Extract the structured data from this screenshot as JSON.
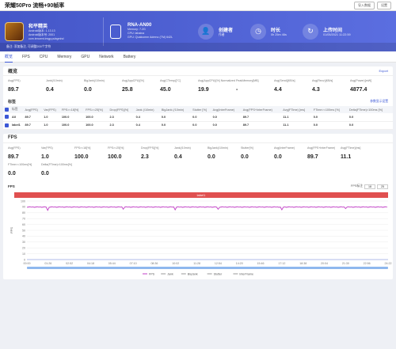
{
  "window": {
    "title": "荣耀50Pro 流畅+90帧率",
    "buttons": [
      "导入数据",
      "设置"
    ]
  },
  "game": {
    "name": "和平精英",
    "lines": [
      "Android版本: 1.13.13",
      "Android版本号: 2001",
      "com.tencent.tmgp.pubgmhd"
    ]
  },
  "device": {
    "name": "RNA-AN00",
    "lines": [
      "Memory: 7.2G",
      "CPU: lahaina",
      "GPU: Qualcomm Adreno (TM) 642L"
    ]
  },
  "stats": [
    {
      "label": "创建者",
      "value": "作者",
      "icon": "user-icon",
      "glyph": "👤"
    },
    {
      "label": "时长",
      "value": "0h 25m 46s",
      "icon": "clock-icon",
      "glyph": "◷"
    },
    {
      "label": "上传时间",
      "value": "01/05/2021 11:22:59",
      "icon": "history-icon",
      "glyph": "↻"
    }
  ],
  "banner_footer": "备注: 添加备注, 可调整200个字符",
  "tabs": [
    "概览",
    "FPS",
    "CPU",
    "Memory",
    "GPU",
    "Network",
    "Battery"
  ],
  "overview": {
    "title": "概览",
    "export": "Export",
    "metrics": [
      {
        "label": "Avg(FPS)",
        "value": "89.7"
      },
      {
        "label": "Jank(/10min)",
        "value": "0.4"
      },
      {
        "label": "BigJank(/10min)",
        "value": "0.0"
      },
      {
        "label": "Avg(AppCPU)[%]",
        "value": "25.8"
      },
      {
        "label": "Avg(CTemp)[°C]",
        "value": "45.0"
      },
      {
        "label": "Avg(AppCPU)[%] Normalized",
        "value": "19.9"
      },
      {
        "label": "PeakMemory[MB]",
        "value": "-"
      },
      {
        "label": "Avg(Send)[KB/s]",
        "value": "4.4"
      },
      {
        "label": "Avg(Recv)[KB/s]",
        "value": "4.3"
      },
      {
        "label": "Avg(Power)[mW]",
        "value": "4877.4"
      }
    ]
  },
  "labels": {
    "title": "标签",
    "link": "参数显示设置",
    "columns": [
      "标签",
      "Avg(FPS)",
      "Var(FPS)",
      "FPS>=18[%]",
      "FPS>=25[%]",
      "Drop(FPS)[%]",
      "Jank (/10min)",
      "BigJank (/10min)",
      "Stutter [%]",
      "Avg(InterFrame)",
      "Avg(FPS+InterFrame)",
      "Avg(FTime) [ms]",
      "FTime>=100ms [%]",
      "Delta(FTime)>100ms [%]"
    ],
    "rows": [
      [
        "All",
        "89.7",
        "1.0",
        "100.0",
        "100.0",
        "2.3",
        "0.4",
        "0.0",
        "0.0",
        "0.0",
        "89.7",
        "11.1",
        "0.0",
        "0.0"
      ],
      [
        "label1",
        "89.7",
        "1.0",
        "100.0",
        "100.0",
        "2.3",
        "0.4",
        "0.0",
        "0.0",
        "0.0",
        "89.7",
        "11.1",
        "0.0",
        "0.0"
      ]
    ]
  },
  "fps": {
    "title": "FPS",
    "metrics": [
      {
        "label": "Avg(FPS)",
        "value": "89.7"
      },
      {
        "label": "Var(FPS)",
        "value": "1.0"
      },
      {
        "label": "FPS>=18[%]",
        "value": "100.0"
      },
      {
        "label": "FPS>=25[%]",
        "value": "100.0"
      },
      {
        "label": "Drop(FPS)[%]",
        "value": "2.3"
      },
      {
        "label": "Jank(/10min)",
        "value": "0.4"
      },
      {
        "label": "BigJank(/10min)",
        "value": "0.0"
      },
      {
        "label": "Stutter[%]",
        "value": "0.0"
      },
      {
        "label": "Avg(InterFrame)",
        "value": "0.0"
      },
      {
        "label": "Avg(FPS+InterFrame)",
        "value": "89.7"
      },
      {
        "label": "Avg(FTime)[ms]",
        "value": "11.1"
      },
      {
        "label": "FTime>=100ms[%]",
        "value": "0.0"
      },
      {
        "label": "Delta(FTime)>100ms[%]",
        "value": "0.0"
      }
    ],
    "chart_label": "FPS",
    "range_label": "FPS标注",
    "range_min": "18",
    "range_max": "25",
    "series_label": "label1"
  },
  "chart_data": {
    "type": "line",
    "ylabel": "FPS",
    "ylim": [
      0,
      100
    ],
    "yticks": [
      0,
      10,
      20,
      30,
      40,
      50,
      60,
      70,
      80,
      90,
      100
    ],
    "xticks": [
      "00:00",
      "01:26",
      "02:52",
      "04:18",
      "05:44",
      "07:10",
      "08:36",
      "10:02",
      "11:28",
      "12:54",
      "14:20",
      "15:46",
      "17:12",
      "18:38",
      "20:04",
      "21:30",
      "22:56",
      "24:22"
    ],
    "series": [
      {
        "name": "FPS",
        "value": 89.7,
        "color": "#c23fc7"
      },
      {
        "name": "Jank",
        "value": 0,
        "color": "#999999"
      },
      {
        "name": "BigJank",
        "value": 0,
        "color": "#999999"
      },
      {
        "name": "Stutter",
        "value": 0,
        "color": "#999999"
      },
      {
        "name": "InterFrame",
        "value": 0,
        "color": "#999999"
      }
    ],
    "dips": [
      {
        "x": "01:26",
        "y": 84
      },
      {
        "x": "06:30",
        "y": 86
      },
      {
        "x": "10:02",
        "y": 85
      },
      {
        "x": "12:54",
        "y": 86
      },
      {
        "x": "17:12",
        "y": 85
      },
      {
        "x": "21:30",
        "y": 87
      }
    ],
    "grid": true,
    "legend": "bottom"
  },
  "colors": {
    "brand": "#4456c8",
    "accent": "#3b57d6",
    "series_bar": "#e05050"
  }
}
